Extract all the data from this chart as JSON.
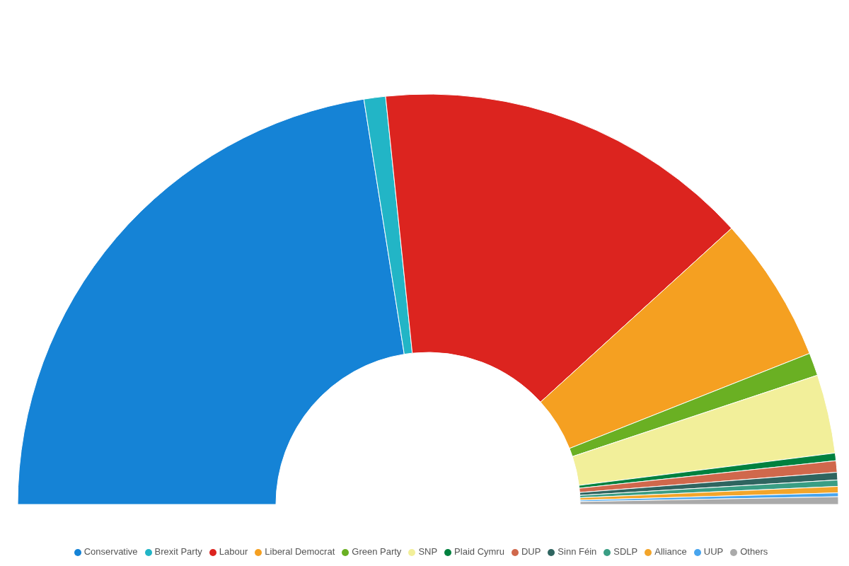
{
  "chart_data": {
    "type": "donut",
    "categories": [
      "Conservative",
      "Brexit Party",
      "Labour",
      "Liberal Democrat",
      "Green Party",
      "SNP",
      "Plaid Cymru",
      "DUP",
      "Sinn Féin",
      "SDLP",
      "Alliance",
      "UUP",
      "Others"
    ],
    "values": [
      45,
      1.7,
      29.8,
      11.5,
      1.8,
      6.2,
      0.6,
      0.9,
      0.6,
      0.5,
      0.5,
      0.3,
      0.6
    ],
    "colors": [
      "#1583d6",
      "#22b5c6",
      "#dc241f",
      "#f5a021",
      "#6ab023",
      "#f2ef9a",
      "#00813f",
      "#d0684c",
      "#2f6560",
      "#3a9e84",
      "#f3a52a",
      "#48a5ee",
      "#aaaaaa"
    ],
    "legend": "bottom"
  }
}
